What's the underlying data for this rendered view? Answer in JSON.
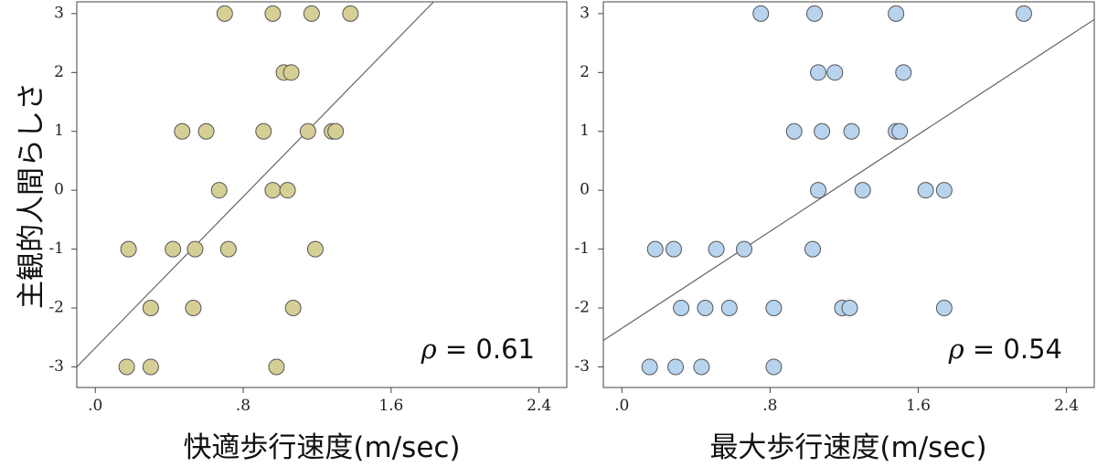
{
  "ylabel": "主観的人間らしさ",
  "chart_data": [
    {
      "type": "scatter",
      "title": "",
      "xlabel": "快適歩行速度(m/sec)",
      "ylabel": "主観的人間らしさ",
      "xlim": [
        -0.1,
        2.55
      ],
      "ylim": [
        -3.35,
        3.2
      ],
      "xticks": [
        0,
        0.8,
        1.6,
        2.4
      ],
      "xtick_labels": [
        ".0",
        ".8",
        "1.6",
        "2.4"
      ],
      "yticks": [
        3,
        2,
        1,
        0,
        -1,
        -2,
        -3
      ],
      "ytick_labels": [
        "3",
        "2",
        "1",
        "0",
        "-1",
        "-2",
        "-3"
      ],
      "annotation_symbol": "ρ",
      "annotation_value": " = 0.61",
      "point_color": "#d6cf95",
      "trend_line": {
        "x": [
          -0.1,
          1.83
        ],
        "y": [
          -3.0,
          3.2
        ]
      },
      "points": [
        {
          "x": 0.7,
          "y": 3
        },
        {
          "x": 0.96,
          "y": 3
        },
        {
          "x": 1.17,
          "y": 3
        },
        {
          "x": 1.38,
          "y": 3
        },
        {
          "x": 1.02,
          "y": 2
        },
        {
          "x": 1.06,
          "y": 2
        },
        {
          "x": 0.47,
          "y": 1
        },
        {
          "x": 0.6,
          "y": 1
        },
        {
          "x": 0.91,
          "y": 1
        },
        {
          "x": 1.15,
          "y": 1
        },
        {
          "x": 1.28,
          "y": 1
        },
        {
          "x": 1.3,
          "y": 1
        },
        {
          "x": 0.67,
          "y": 0
        },
        {
          "x": 0.96,
          "y": 0
        },
        {
          "x": 1.04,
          "y": 0
        },
        {
          "x": 0.18,
          "y": -1
        },
        {
          "x": 0.42,
          "y": -1
        },
        {
          "x": 0.54,
          "y": -1
        },
        {
          "x": 0.72,
          "y": -1
        },
        {
          "x": 1.19,
          "y": -1
        },
        {
          "x": 0.3,
          "y": -2
        },
        {
          "x": 0.53,
          "y": -2
        },
        {
          "x": 1.07,
          "y": -2
        },
        {
          "x": 0.17,
          "y": -3
        },
        {
          "x": 0.3,
          "y": -3
        },
        {
          "x": 0.98,
          "y": -3
        }
      ]
    },
    {
      "type": "scatter",
      "title": "",
      "xlabel": "最大歩行速度(m/sec)",
      "ylabel": "",
      "xlim": [
        -0.1,
        2.55
      ],
      "ylim": [
        -3.35,
        3.2
      ],
      "xticks": [
        0,
        0.8,
        1.6,
        2.4
      ],
      "xtick_labels": [
        ".0",
        ".8",
        "1.6",
        "2.4"
      ],
      "yticks": [
        3,
        2,
        1,
        0,
        -1,
        -2,
        -3
      ],
      "ytick_labels": [
        "3",
        "2",
        "1",
        "0",
        "-1",
        "-2",
        "-3"
      ],
      "annotation_symbol": "ρ",
      "annotation_value": " = 0.54",
      "point_color": "#b7d3ee",
      "trend_line": {
        "x": [
          -0.1,
          2.55
        ],
        "y": [
          -2.55,
          2.9
        ]
      },
      "points": [
        {
          "x": 0.75,
          "y": 3
        },
        {
          "x": 1.04,
          "y": 3
        },
        {
          "x": 1.48,
          "y": 3
        },
        {
          "x": 2.17,
          "y": 3
        },
        {
          "x": 1.06,
          "y": 2
        },
        {
          "x": 1.15,
          "y": 2
        },
        {
          "x": 1.52,
          "y": 2
        },
        {
          "x": 0.93,
          "y": 1
        },
        {
          "x": 1.08,
          "y": 1
        },
        {
          "x": 1.24,
          "y": 1
        },
        {
          "x": 1.48,
          "y": 1
        },
        {
          "x": 1.5,
          "y": 1
        },
        {
          "x": 1.06,
          "y": 0
        },
        {
          "x": 1.3,
          "y": 0
        },
        {
          "x": 1.64,
          "y": 0
        },
        {
          "x": 1.74,
          "y": 0
        },
        {
          "x": 0.18,
          "y": -1
        },
        {
          "x": 0.28,
          "y": -1
        },
        {
          "x": 0.51,
          "y": -1
        },
        {
          "x": 0.66,
          "y": -1
        },
        {
          "x": 1.03,
          "y": -1
        },
        {
          "x": 0.32,
          "y": -2
        },
        {
          "x": 0.45,
          "y": -2
        },
        {
          "x": 0.58,
          "y": -2
        },
        {
          "x": 0.82,
          "y": -2
        },
        {
          "x": 1.19,
          "y": -2
        },
        {
          "x": 1.23,
          "y": -2
        },
        {
          "x": 1.74,
          "y": -2
        },
        {
          "x": 0.15,
          "y": -3
        },
        {
          "x": 0.29,
          "y": -3
        },
        {
          "x": 0.43,
          "y": -3
        },
        {
          "x": 0.82,
          "y": -3
        }
      ]
    }
  ]
}
